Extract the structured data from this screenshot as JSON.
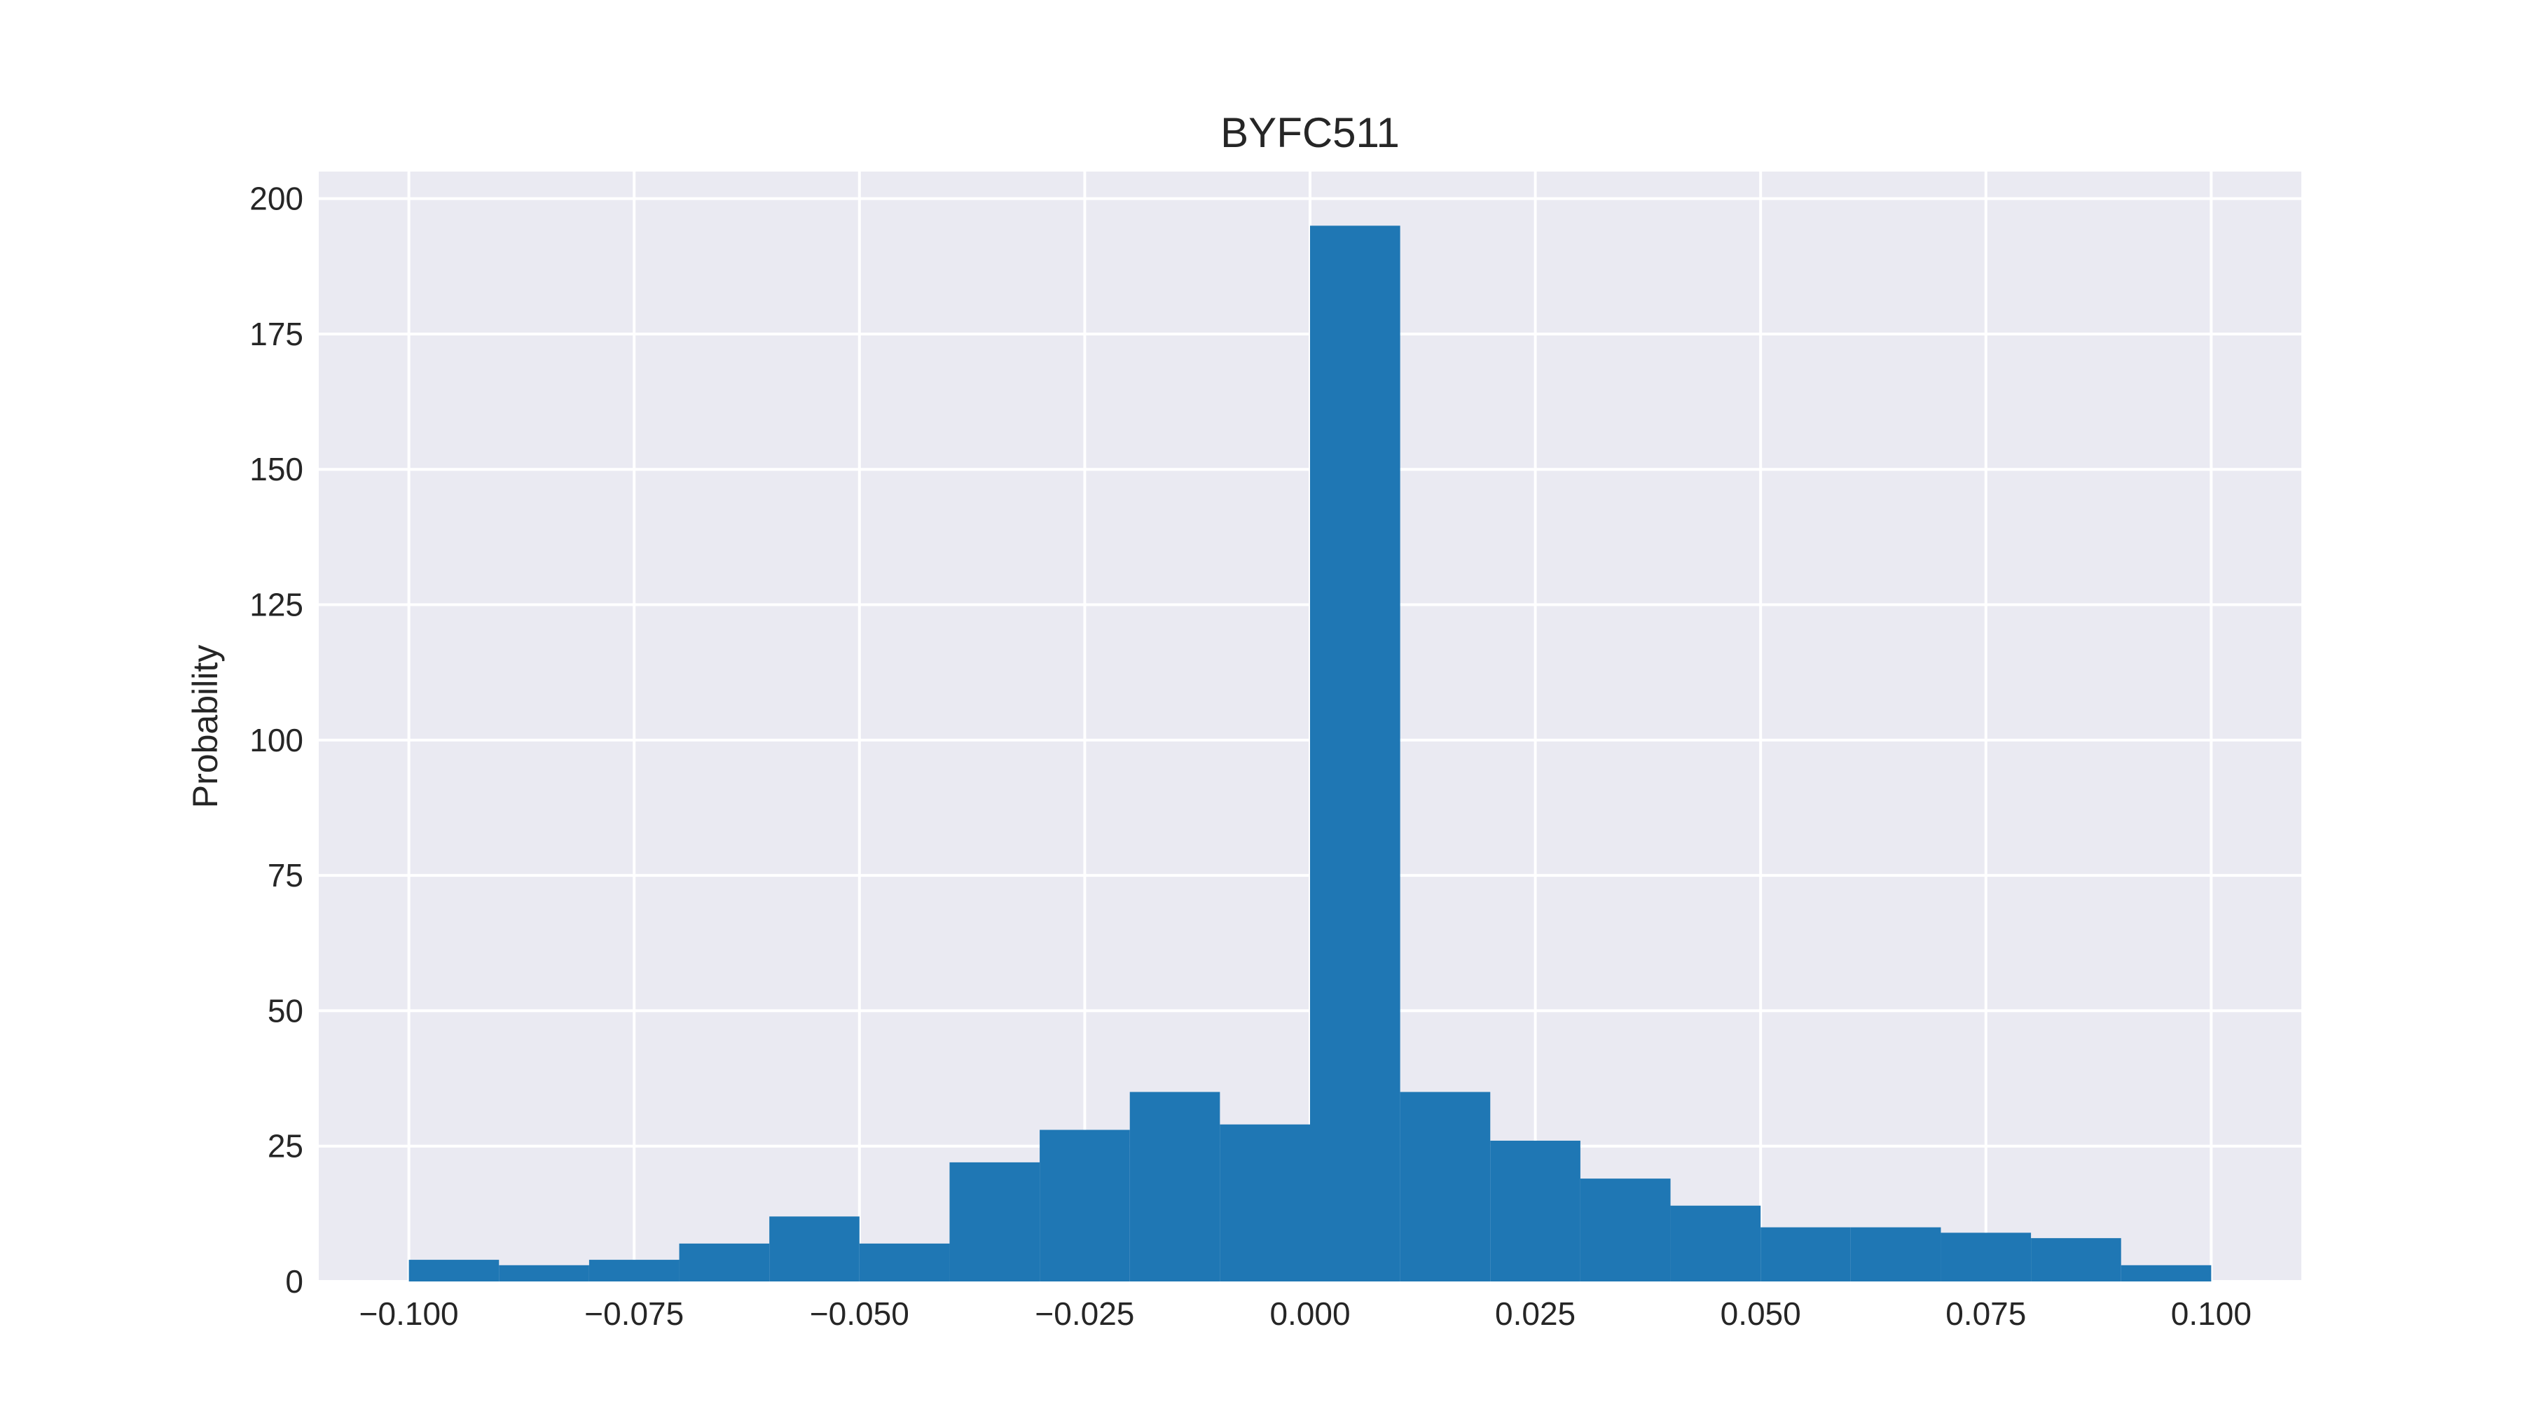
{
  "chart_data": {
    "type": "bar",
    "title": "BYFC511",
    "xlabel": "",
    "ylabel": "Probability",
    "xlim": [
      -0.11,
      0.11
    ],
    "ylim": [
      0,
      205
    ],
    "x_ticks": [
      -0.1,
      -0.075,
      -0.05,
      -0.025,
      0.0,
      0.025,
      0.05,
      0.075,
      0.1
    ],
    "x_tick_labels": [
      "−0.100",
      "−0.075",
      "−0.050",
      "−0.025",
      "0.000",
      "0.025",
      "0.050",
      "0.075",
      "0.100"
    ],
    "y_ticks": [
      0,
      25,
      50,
      75,
      100,
      125,
      150,
      175,
      200
    ],
    "y_tick_labels": [
      "0",
      "25",
      "50",
      "75",
      "100",
      "125",
      "150",
      "175",
      "200"
    ],
    "bin_edges": [
      -0.1,
      -0.09,
      -0.08,
      -0.07,
      -0.06,
      -0.05,
      -0.04,
      -0.03,
      -0.02,
      -0.01,
      0.0,
      0.01,
      0.02,
      0.03,
      0.04,
      0.05,
      0.06,
      0.07,
      0.08,
      0.09,
      0.1
    ],
    "values": [
      4,
      3,
      4,
      7,
      12,
      7,
      22,
      28,
      35,
      29,
      195,
      35,
      26,
      19,
      14,
      10,
      10,
      9,
      8,
      3
    ],
    "grid": true,
    "colors": {
      "bar": "#1f77b4",
      "plot_background": "#eaeaf2",
      "grid": "#ffffff"
    }
  }
}
